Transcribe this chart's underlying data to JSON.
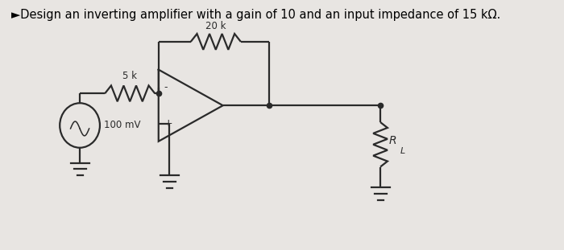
{
  "title_text": "►Design an inverting amplifier with a gain of 10 and an input impedance of 15 kΩ.",
  "title_fontsize": 10.5,
  "bg_color": "#e8e5e2",
  "line_color": "#2a2a2a",
  "line_width": 1.6,
  "label_5k": "5 k",
  "label_20k": "20 k",
  "label_100mV": "100 mV",
  "label_RL": "R",
  "label_RL_sub": "L",
  "label_minus": "-",
  "label_plus": "+"
}
